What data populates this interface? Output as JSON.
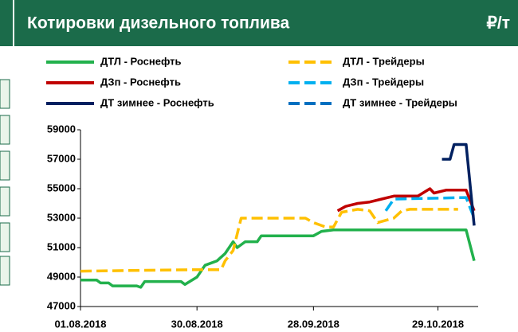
{
  "chart_data": {
    "type": "line",
    "title": "Котировки дизельного топлива",
    "unit": "₽/т",
    "ylim": [
      47000,
      59000
    ],
    "yticks": [
      47000,
      49000,
      51000,
      53000,
      55000,
      57000,
      59000
    ],
    "xlim": [
      "2018-08-01",
      "2018-11-08"
    ],
    "xticks": [
      {
        "value": "2018-08-01",
        "label": "01.08.2018"
      },
      {
        "value": "2018-08-30",
        "label": "30.08.2018"
      },
      {
        "value": "2018-09-28",
        "label": "28.09.2018"
      },
      {
        "value": "2018-10-29",
        "label": "29.10.2018"
      }
    ],
    "series": [
      {
        "name": "ДТЛ - Роснефть",
        "color": "#22b14c",
        "dash": false,
        "x": [
          "2018-08-01",
          "2018-08-05",
          "2018-08-06",
          "2018-08-08",
          "2018-08-09",
          "2018-08-15",
          "2018-08-16",
          "2018-08-17",
          "2018-08-18",
          "2018-08-26",
          "2018-08-27",
          "2018-08-30",
          "2018-09-01",
          "2018-09-04",
          "2018-09-06",
          "2018-09-08",
          "2018-09-09",
          "2018-09-11",
          "2018-09-14",
          "2018-09-15",
          "2018-09-28",
          "2018-09-30",
          "2018-10-03",
          "2018-11-05",
          "2018-11-07"
        ],
        "values": [
          48800,
          48800,
          48600,
          48600,
          48400,
          48400,
          48300,
          48700,
          48700,
          48700,
          48500,
          49000,
          49800,
          50100,
          50600,
          51400,
          51000,
          51400,
          51400,
          51800,
          51800,
          52100,
          52200,
          52200,
          50100
        ]
      },
      {
        "name": "ДТЛ - Трейдеры",
        "color": "#ffc000",
        "dash": true,
        "x": [
          "2018-08-01",
          "2018-08-28",
          "2018-09-05",
          "2018-09-06",
          "2018-09-08",
          "2018-09-10",
          "2018-09-26",
          "2018-09-28",
          "2018-10-01",
          "2018-10-03",
          "2018-10-05",
          "2018-10-09",
          "2018-10-12",
          "2018-10-14",
          "2018-10-18",
          "2018-10-20",
          "2018-10-22",
          "2018-11-03"
        ],
        "values": [
          49400,
          49500,
          49500,
          50100,
          50800,
          53000,
          53000,
          52700,
          52400,
          52400,
          53400,
          53600,
          53500,
          52700,
          53000,
          53500,
          53600,
          53600
        ]
      },
      {
        "name": "ДЗп - Роснефть",
        "color": "#c00000",
        "dash": false,
        "x": [
          "2018-10-04",
          "2018-10-06",
          "2018-10-09",
          "2018-10-12",
          "2018-10-15",
          "2018-10-18",
          "2018-10-24",
          "2018-10-27",
          "2018-10-28",
          "2018-10-31",
          "2018-11-05",
          "2018-11-07"
        ],
        "values": [
          53500,
          53800,
          54000,
          54100,
          54300,
          54500,
          54500,
          55000,
          54700,
          54900,
          54900,
          53500
        ]
      },
      {
        "name": "ДЗп  - Трейдеры",
        "color": "#00b0f0",
        "dash": true,
        "x": [
          "2018-10-16",
          "2018-10-18",
          "2018-11-05",
          "2018-11-07"
        ],
        "values": [
          53500,
          54300,
          54400,
          53000
        ]
      },
      {
        "name": "ДТ зимнее - Роснефть",
        "color": "#002060",
        "dash": false,
        "x": [
          "2018-10-30",
          "2018-11-01",
          "2018-11-02",
          "2018-11-05",
          "2018-11-07"
        ],
        "values": [
          57000,
          57000,
          58000,
          58000,
          52500
        ]
      },
      {
        "name": "ДТ зимнее - Трейдеры",
        "color": "#0070c0",
        "dash": true,
        "x": [],
        "values": []
      }
    ]
  }
}
